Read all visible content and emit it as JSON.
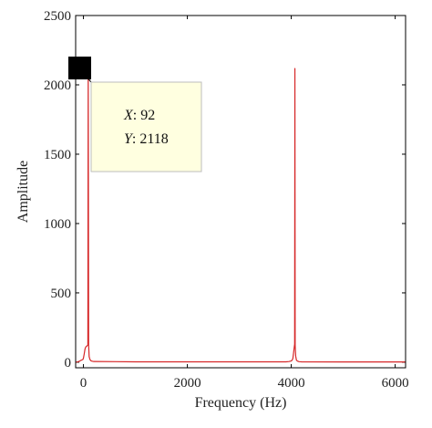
{
  "chart_data": {
    "type": "line",
    "xlabel": "Frequency (Hz)",
    "ylabel": "Amplitude",
    "xlim": [
      -150,
      6200
    ],
    "ylim": [
      -40,
      2500
    ],
    "xticks": [
      0,
      2000,
      4000,
      6000
    ],
    "yticks": [
      0,
      500,
      1000,
      1500,
      2000,
      2500
    ],
    "grid": false,
    "series": [
      {
        "color": "#d62728",
        "x": [
          -150,
          -90,
          -40,
          -10,
          0,
          15,
          30,
          45,
          60,
          75,
          85,
          92,
          100,
          110,
          125,
          140,
          160,
          200,
          1000,
          2000,
          3000,
          3900,
          3955,
          3990,
          4010,
          4030,
          4045,
          4058,
          4065,
          4070,
          4075,
          4085,
          4100,
          4120,
          4150,
          4200,
          5000,
          6200
        ],
        "y": [
          0,
          5,
          15,
          20,
          30,
          60,
          95,
          110,
          115,
          120,
          125,
          2118,
          125,
          40,
          20,
          12,
          8,
          5,
          3,
          3,
          3,
          3,
          5,
          8,
          12,
          25,
          70,
          110,
          130,
          2118,
          120,
          45,
          15,
          8,
          4,
          3,
          2,
          2
        ]
      }
    ],
    "datatip": {
      "x_key": "X",
      "x_value": "92",
      "y_key": "Y",
      "y_value": "2118",
      "point": [
        92,
        2118
      ]
    }
  }
}
